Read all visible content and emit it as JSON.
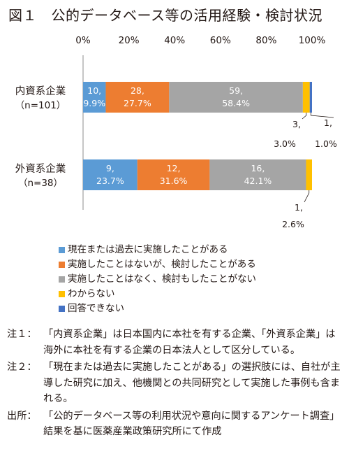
{
  "title": "図１　公的データベース等の活用経験・検討状況",
  "chart_data": {
    "type": "bar",
    "orientation": "horizontal",
    "stacked": true,
    "percent": true,
    "xlim": [
      0,
      100
    ],
    "x_tick_labels": [
      "0%",
      "20%",
      "40%",
      "60%",
      "80%",
      "100%"
    ],
    "grid": false,
    "legend_position": "bottom-left",
    "categories": [
      "内資系企業",
      "外資系企業"
    ],
    "category_sublabels": [
      "（n=101）",
      "（n=38）"
    ],
    "series": [
      {
        "name": "現在または過去に実施したことがある",
        "color": "#5b9bd5",
        "counts": [
          10,
          9
        ],
        "values": [
          9.9,
          23.7
        ],
        "labels": [
          [
            "10,",
            "9.9%"
          ],
          [
            "9,",
            "23.7%"
          ]
        ]
      },
      {
        "name": "実施したことはないが、検討したことがある",
        "color": "#ed7d31",
        "counts": [
          28,
          12
        ],
        "values": [
          27.7,
          31.6
        ],
        "labels": [
          [
            "28,",
            "27.7%"
          ],
          [
            "12,",
            "31.6%"
          ]
        ]
      },
      {
        "name": "実施したことはなく、検討もしたことがない",
        "color": "#a5a5a5",
        "counts": [
          59,
          16
        ],
        "values": [
          58.4,
          42.1
        ],
        "labels": [
          [
            "59,",
            "58.4%"
          ],
          [
            "16,",
            "42.1%"
          ]
        ]
      },
      {
        "name": "わからない",
        "color": "#ffc000",
        "counts": [
          3,
          1
        ],
        "values": [
          3.0,
          2.6
        ],
        "labels": [
          [
            "3,",
            "3.0%"
          ],
          [
            "1,",
            "2.6%"
          ]
        ]
      },
      {
        "name": "回答できない",
        "color": "#4472c4",
        "counts": [
          1,
          0
        ],
        "values": [
          1.0,
          0
        ],
        "labels": [
          [
            "1,",
            "1.0%"
          ],
          null
        ]
      }
    ]
  },
  "notes": [
    {
      "label": "注１：",
      "text": "「内資系企業」は日本国内に本社を有する企業、「外資系企業」は海外に本社を有する企業の日本法人として区分している。"
    },
    {
      "label": "注２：",
      "text": "「現在または過去に実施したことがある」の選択肢には、自社が主導した研究に加え、他機関との共同研究として実施した事例も含まれる。"
    },
    {
      "label": "出所：",
      "text": "「公的データベース等の利用状況や意向に関するアンケート調査」結果を基に医薬産業政策研究所にて作成"
    }
  ]
}
